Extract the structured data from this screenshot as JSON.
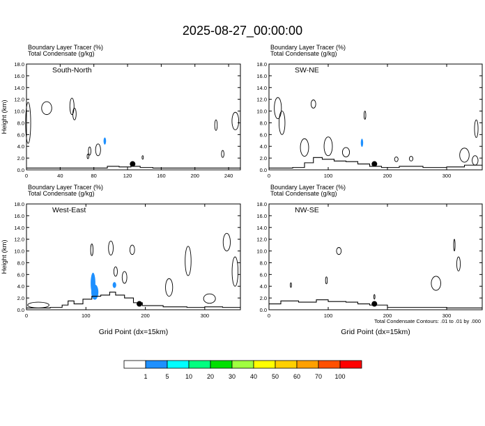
{
  "title": "2025-08-27_00:00:00",
  "chart_data": {
    "type": "contour",
    "panels": [
      {
        "id": "panel-south-north",
        "header_line1": "Boundary Layer Tracer   (%)",
        "header_line2": "Total Condensate   (g/kg)",
        "label": "South-North",
        "ylabel": "Height (km)",
        "xlabel": "",
        "xlim": [
          0,
          254
        ],
        "ylim": [
          0,
          18
        ],
        "xticks": [
          0,
          40,
          80,
          120,
          160,
          200,
          240
        ],
        "yticks": [
          0.0,
          2.0,
          4.0,
          6.0,
          8.0,
          10.0,
          12.0,
          14.0,
          16.0,
          18.0
        ],
        "marker": {
          "x": 126,
          "y": 1.0
        },
        "terrain": [
          [
            0,
            0.3
          ],
          [
            30,
            0.3
          ],
          [
            80,
            0.3
          ],
          [
            96,
            0.6
          ],
          [
            110,
            0.5
          ],
          [
            124,
            0.6
          ],
          [
            135,
            0.4
          ],
          [
            150,
            0.3
          ],
          [
            200,
            0.3
          ],
          [
            230,
            0.3
          ],
          [
            254,
            0.4
          ]
        ],
        "tracer_blobs": [
          {
            "x": 93,
            "y": 4.9,
            "rx": 1.5,
            "ry": 0.6
          }
        ],
        "cloud_blobs": [
          {
            "x": 2,
            "y": 8.0,
            "rx": 3,
            "ry": 3.5
          },
          {
            "x": 24,
            "y": 10.5,
            "rx": 6,
            "ry": 1.1
          },
          {
            "x": 54,
            "y": 10.8,
            "rx": 2.5,
            "ry": 1.4
          },
          {
            "x": 57,
            "y": 9.5,
            "rx": 2,
            "ry": 1.0
          },
          {
            "x": 225,
            "y": 7.6,
            "rx": 1.5,
            "ry": 0.9
          },
          {
            "x": 248,
            "y": 8.3,
            "rx": 4,
            "ry": 1.5
          },
          {
            "x": 75,
            "y": 3.2,
            "rx": 1.5,
            "ry": 0.7
          },
          {
            "x": 85,
            "y": 3.4,
            "rx": 3,
            "ry": 1.0
          },
          {
            "x": 73,
            "y": 2.3,
            "rx": 1,
            "ry": 0.4
          },
          {
            "x": 233,
            "y": 2.7,
            "rx": 1.5,
            "ry": 0.6
          },
          {
            "x": 138,
            "y": 2.1,
            "rx": 0.8,
            "ry": 0.3
          }
        ]
      },
      {
        "id": "panel-sw-ne",
        "header_line1": "Boundary Layer Tracer   (%)",
        "header_line2": "Total Condensate   (g/kg)",
        "label": "SW-NE",
        "ylabel": "",
        "xlabel": "",
        "xlim": [
          0,
          360
        ],
        "ylim": [
          0,
          18
        ],
        "xticks": [
          0,
          100,
          200,
          300
        ],
        "yticks": [
          0.0,
          2.0,
          4.0,
          6.0,
          8.0,
          10.0,
          12.0,
          14.0,
          16.0,
          18.0
        ],
        "marker": {
          "x": 178,
          "y": 1.0
        },
        "terrain": [
          [
            0,
            0.3
          ],
          [
            40,
            0.4
          ],
          [
            60,
            1.2
          ],
          [
            75,
            2.1
          ],
          [
            90,
            1.8
          ],
          [
            110,
            1.5
          ],
          [
            130,
            1.4
          ],
          [
            150,
            1.0
          ],
          [
            170,
            0.6
          ],
          [
            190,
            0.4
          ],
          [
            220,
            0.6
          ],
          [
            260,
            0.4
          ],
          [
            300,
            0.5
          ],
          [
            330,
            0.8
          ],
          [
            360,
            0.6
          ]
        ],
        "tracer_blobs": [
          {
            "x": 157,
            "y": 4.6,
            "rx": 2,
            "ry": 0.7
          }
        ],
        "cloud_blobs": [
          {
            "x": 15,
            "y": 10.5,
            "rx": 6,
            "ry": 1.8
          },
          {
            "x": 22,
            "y": 8.0,
            "rx": 5,
            "ry": 2.0
          },
          {
            "x": 75,
            "y": 11.2,
            "rx": 4,
            "ry": 0.7
          },
          {
            "x": 162,
            "y": 9.3,
            "rx": 1.5,
            "ry": 0.7
          },
          {
            "x": 350,
            "y": 7.0,
            "rx": 3,
            "ry": 1.5
          },
          {
            "x": 60,
            "y": 3.8,
            "rx": 7,
            "ry": 1.5
          },
          {
            "x": 100,
            "y": 4.0,
            "rx": 7,
            "ry": 1.6
          },
          {
            "x": 130,
            "y": 3.0,
            "rx": 6,
            "ry": 0.8
          },
          {
            "x": 215,
            "y": 1.8,
            "rx": 3,
            "ry": 0.4
          },
          {
            "x": 240,
            "y": 1.9,
            "rx": 3,
            "ry": 0.4
          },
          {
            "x": 330,
            "y": 2.5,
            "rx": 8,
            "ry": 1.2
          },
          {
            "x": 348,
            "y": 1.6,
            "rx": 5,
            "ry": 0.8
          }
        ]
      },
      {
        "id": "panel-west-east",
        "header_line1": "Boundary Layer Tracer   (%)",
        "header_line2": "Total Condensate   (g/kg)",
        "label": "West-East",
        "ylabel": "Height (km)",
        "xlabel": "Grid Point (dx=15km)",
        "xlim": [
          0,
          360
        ],
        "ylim": [
          0,
          18
        ],
        "xticks": [
          0,
          100,
          200,
          300
        ],
        "yticks": [
          0.0,
          2.0,
          4.0,
          6.0,
          8.0,
          10.0,
          12.0,
          14.0,
          16.0,
          18.0
        ],
        "marker": {
          "x": 190,
          "y": 1.0
        },
        "terrain": [
          [
            0,
            0.3
          ],
          [
            40,
            0.4
          ],
          [
            60,
            0.8
          ],
          [
            70,
            1.5
          ],
          [
            80,
            1.0
          ],
          [
            95,
            1.8
          ],
          [
            110,
            2.3
          ],
          [
            125,
            2.5
          ],
          [
            140,
            3.0
          ],
          [
            150,
            2.5
          ],
          [
            165,
            2.0
          ],
          [
            180,
            1.2
          ],
          [
            195,
            0.7
          ],
          [
            230,
            0.5
          ],
          [
            270,
            0.4
          ],
          [
            300,
            0.5
          ],
          [
            330,
            0.4
          ],
          [
            360,
            0.5
          ]
        ],
        "tracer_blobs": [
          {
            "x": 112,
            "y": 4.5,
            "rx": 4,
            "ry": 1.8
          },
          {
            "x": 115,
            "y": 3.0,
            "rx": 6,
            "ry": 1.3
          },
          {
            "x": 148,
            "y": 4.2,
            "rx": 3,
            "ry": 0.5
          }
        ],
        "cloud_blobs": [
          {
            "x": 110,
            "y": 10.2,
            "rx": 2,
            "ry": 1.0
          },
          {
            "x": 142,
            "y": 10.5,
            "rx": 4,
            "ry": 1.2
          },
          {
            "x": 178,
            "y": 10.2,
            "rx": 4,
            "ry": 0.8
          },
          {
            "x": 272,
            "y": 8.3,
            "rx": 5,
            "ry": 2.5
          },
          {
            "x": 337,
            "y": 11.5,
            "rx": 6,
            "ry": 1.5
          },
          {
            "x": 351,
            "y": 6.5,
            "rx": 5,
            "ry": 2.5
          },
          {
            "x": 150,
            "y": 6.5,
            "rx": 3,
            "ry": 0.8
          },
          {
            "x": 165,
            "y": 5.5,
            "rx": 4,
            "ry": 1.0
          },
          {
            "x": 240,
            "y": 3.8,
            "rx": 6,
            "ry": 1.5
          },
          {
            "x": 308,
            "y": 1.9,
            "rx": 10,
            "ry": 0.8
          },
          {
            "x": 20,
            "y": 0.8,
            "rx": 18,
            "ry": 0.5
          }
        ]
      },
      {
        "id": "panel-nw-se",
        "header_line1": "Boundary Layer Tracer   (%)",
        "header_line2": "Total Condensate   (g/kg)",
        "label": "NW-SE",
        "ylabel": "",
        "xlabel": "Grid Point (dx=15km)",
        "xlim": [
          0,
          360
        ],
        "ylim": [
          0,
          18
        ],
        "xticks": [
          0,
          100,
          200,
          300
        ],
        "yticks": [
          0.0,
          2.0,
          4.0,
          6.0,
          8.0,
          10.0,
          12.0,
          14.0,
          16.0,
          18.0
        ],
        "marker": {
          "x": 178,
          "y": 1.0
        },
        "terrain": [
          [
            0,
            1.0
          ],
          [
            20,
            1.5
          ],
          [
            50,
            1.3
          ],
          [
            80,
            1.7
          ],
          [
            100,
            1.4
          ],
          [
            130,
            1.3
          ],
          [
            150,
            1.0
          ],
          [
            170,
            0.8
          ],
          [
            200,
            0.4
          ],
          [
            240,
            0.4
          ],
          [
            300,
            0.3
          ],
          [
            360,
            0.3
          ]
        ],
        "tracer_blobs": [],
        "cloud_blobs": [
          {
            "x": 118,
            "y": 10.0,
            "rx": 4,
            "ry": 0.6
          },
          {
            "x": 313,
            "y": 11.0,
            "rx": 1.2,
            "ry": 1.0
          },
          {
            "x": 320,
            "y": 7.8,
            "rx": 3,
            "ry": 1.2
          },
          {
            "x": 282,
            "y": 4.5,
            "rx": 8,
            "ry": 1.2
          },
          {
            "x": 97,
            "y": 5.0,
            "rx": 1.5,
            "ry": 0.6
          },
          {
            "x": 37,
            "y": 4.2,
            "rx": 1,
            "ry": 0.4
          },
          {
            "x": 178,
            "y": 2.2,
            "rx": 1,
            "ry": 0.4
          }
        ]
      }
    ],
    "footnote": "Total Condensate Contours: .01 to .01 by .000",
    "colorbar": {
      "labels": [
        "1",
        "5",
        "10",
        "20",
        "30",
        "40",
        "50",
        "60",
        "70",
        "100"
      ],
      "colors": [
        "#ffffff",
        "#1e90ff",
        "#00ffff",
        "#00ff80",
        "#00e000",
        "#a0ff40",
        "#ffff00",
        "#ffd000",
        "#ffa000",
        "#ff5000",
        "#ff0000"
      ]
    }
  }
}
